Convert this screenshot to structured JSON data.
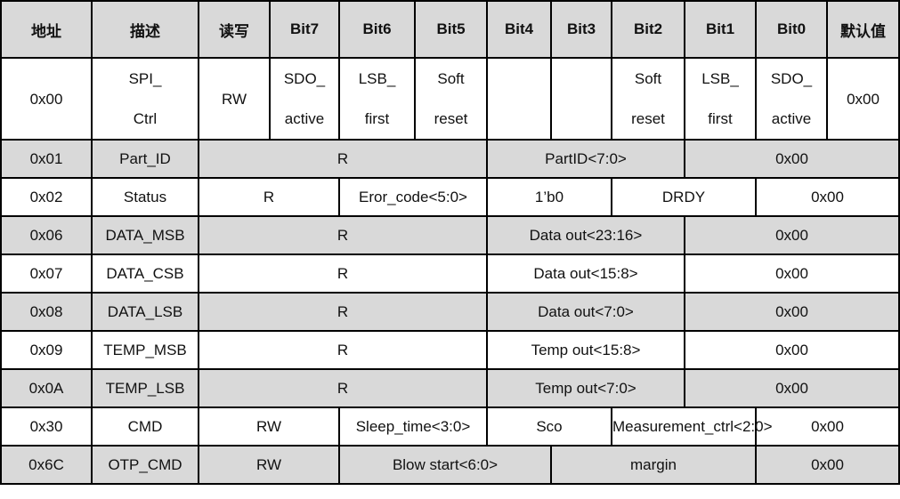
{
  "header": [
    "地址",
    "描述",
    "读写",
    "Bit7",
    "Bit6",
    "Bit5",
    "Bit4",
    "Bit3",
    "Bit2",
    "Bit1",
    "Bit0",
    "默认值"
  ],
  "rows": [
    {
      "addr": "0x00",
      "desc": [
        "SPI_",
        "Ctrl"
      ],
      "rw": "RW",
      "bit7": [
        "SDO_",
        "active"
      ],
      "bit6": [
        "LSB_",
        "first"
      ],
      "bit5": [
        "Soft",
        "reset"
      ],
      "bit4": "",
      "bit3": "",
      "bit2": [
        "Soft",
        "reset"
      ],
      "bit1": [
        "LSB_",
        "first"
      ],
      "bit0": [
        "SDO_",
        "active"
      ],
      "default": "0x00"
    },
    {
      "addr": "0x01",
      "desc": "Part_ID",
      "rw": "R",
      "field": "PartID<7:0>",
      "default": "0x00"
    },
    {
      "addr": "0x02",
      "desc": "Status",
      "rw": "R",
      "f1": "Eror_code<5:0>",
      "f2": "1’b0",
      "f3": "DRDY",
      "default": "0x00"
    },
    {
      "addr": "0x06",
      "desc": "DATA_MSB",
      "rw": "R",
      "field": "Data out<23:16>",
      "default": "0x00"
    },
    {
      "addr": "0x07",
      "desc": "DATA_CSB",
      "rw": "R",
      "field": "Data out<15:8>",
      "default": "0x00"
    },
    {
      "addr": "0x08",
      "desc": "DATA_LSB",
      "rw": "R",
      "field": "Data out<7:0>",
      "default": "0x00"
    },
    {
      "addr": "0x09",
      "desc": "TEMP_MSB",
      "rw": "R",
      "field": "Temp out<15:8>",
      "default": "0x00"
    },
    {
      "addr": "0x0A",
      "desc": "TEMP_LSB",
      "rw": "R",
      "field": "Temp out<7:0>",
      "default": "0x00"
    },
    {
      "addr": "0x30",
      "desc": "CMD",
      "rw": "RW",
      "f1": "Sleep_time<3:0>",
      "f2": "Sco",
      "f3": "Measurement_ctrl<2:0>",
      "default": "0x00"
    },
    {
      "addr": "0x6C",
      "desc": "OTP_CMD",
      "rw": "RW",
      "f1": "Blow start<6:0>",
      "f2": "margin",
      "default": "0x00"
    }
  ]
}
